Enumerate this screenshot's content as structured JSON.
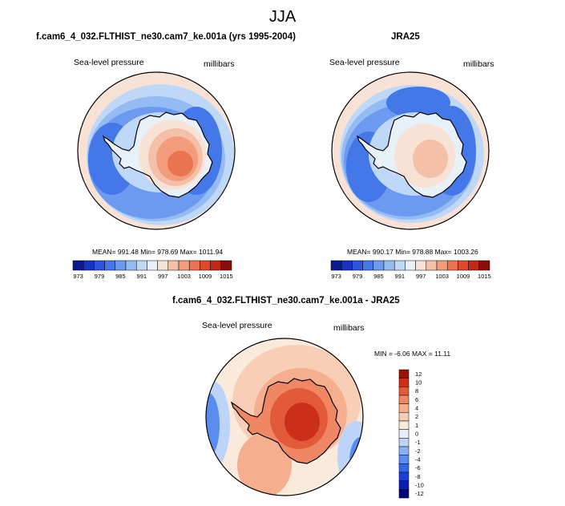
{
  "title": "JJA",
  "panels": [
    {
      "id": "model",
      "heading": "f.cam6_4_032.FLTHIST_ne30.cam7_ke.001a (yrs 1995-2004)",
      "variable": "Sea-level pressure",
      "units": "millibars",
      "stats_text": "MEAN= 991.48  Min= 978.69  Max= 1011.94"
    },
    {
      "id": "obs",
      "heading": "JRA25",
      "variable": "Sea-level pressure",
      "units": "millibars",
      "stats_text": "MEAN= 990.17  Min= 978.88  Max= 1003.26"
    },
    {
      "id": "diff",
      "heading": "f.cam6_4_032.FLTHIST_ne30.cam7_ke.001a - JRA25",
      "variable": "Sea-level pressure",
      "units": "millibars",
      "stats_text": "MIN =  -6.06 MAX =  11.11"
    }
  ],
  "chart_data": [
    {
      "type": "heatmap",
      "projection": "south-polar-stereographic",
      "title": "f.cam6_4_032.FLTHIST_ne30.cam7_ke.001a (yrs 1995-2004)",
      "variable": "Sea-level pressure",
      "units": "millibars",
      "mean": 991.48,
      "min": 978.69,
      "max": 1011.94,
      "colorbar_levels": [
        973,
        976,
        979,
        982,
        985,
        988,
        991,
        994,
        997,
        1000,
        1003,
        1006,
        1009,
        1012,
        1015
      ],
      "colorbar_tick_labels": [
        "973",
        "979",
        "985",
        "991",
        "997",
        "1003",
        "1009",
        "1015"
      ],
      "colorbar_orientation": "horizontal"
    },
    {
      "type": "heatmap",
      "projection": "south-polar-stereographic",
      "title": "JRA25",
      "variable": "Sea-level pressure",
      "units": "millibars",
      "mean": 990.17,
      "min": 978.88,
      "max": 1003.26,
      "colorbar_levels": [
        973,
        976,
        979,
        982,
        985,
        988,
        991,
        994,
        997,
        1000,
        1003,
        1006,
        1009,
        1012,
        1015
      ],
      "colorbar_tick_labels": [
        "973",
        "979",
        "985",
        "991",
        "997",
        "1003",
        "1009",
        "1015"
      ],
      "colorbar_orientation": "horizontal"
    },
    {
      "type": "heatmap",
      "projection": "south-polar-stereographic",
      "title": "f.cam6_4_032.FLTHIST_ne30.cam7_ke.001a - JRA25",
      "variable": "Sea-level pressure",
      "units": "millibars",
      "min": -6.06,
      "max": 11.11,
      "colorbar_levels": [
        -12,
        -10,
        -8,
        -6,
        -4,
        -2,
        -1,
        0,
        1,
        2,
        4,
        6,
        8,
        10,
        12
      ],
      "colorbar_tick_labels": [
        "12",
        "10",
        "8",
        "6",
        "4",
        "2",
        "1",
        "0",
        "-1",
        "-2",
        "-4",
        "-6",
        "-8",
        "-10",
        "-12"
      ],
      "colorbar_orientation": "vertical"
    }
  ],
  "colors": {
    "abs_scale": [
      "#0a1a8c",
      "#1733c0",
      "#2a55dc",
      "#4478e8",
      "#6b9af0",
      "#95bbf4",
      "#c0d8f8",
      "#e8f0f8",
      "#f8e2d6",
      "#f5c0a8",
      "#f29c7c",
      "#ea7350",
      "#dc4a2a",
      "#c02a14",
      "#8c0c08"
    ],
    "diff_scale": [
      "#00067a",
      "#0a1eb4",
      "#1c3ed8",
      "#3466e8",
      "#5a8cf0",
      "#88b2f4",
      "#bcd4f8",
      "#e6eefa",
      "#faeadc",
      "#f8cfb6",
      "#f5ae8e",
      "#ef8664",
      "#e35a3a",
      "#cc3018",
      "#9c1206"
    ],
    "coastline": "#000000"
  }
}
